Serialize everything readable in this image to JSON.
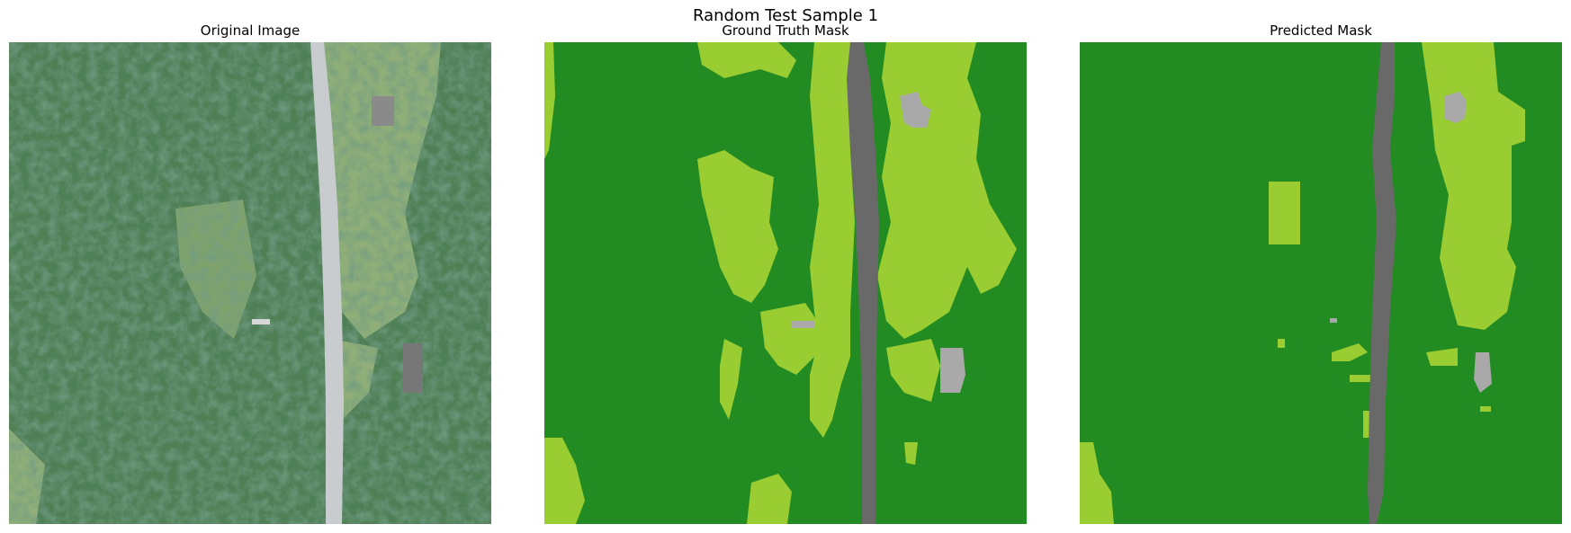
{
  "figure": {
    "title": "Random Test Sample 1"
  },
  "panels": [
    {
      "title": "Original Image"
    },
    {
      "title": "Ground Truth Mask"
    },
    {
      "title": "Predicted Mask"
    }
  ],
  "colors": {
    "forest": "#228B22",
    "grass": "#9ACD32",
    "road": "#696969",
    "building": "#A9A9A9",
    "photo_forest_dark": "#2E5E3E",
    "photo_forest_mid": "#4F7F55",
    "photo_field": "#8FAE78",
    "photo_road": "#C8CCCF"
  }
}
